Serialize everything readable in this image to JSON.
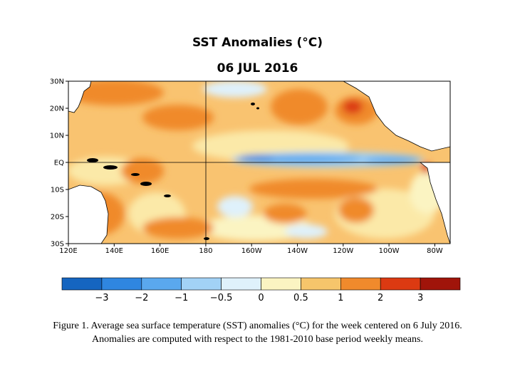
{
  "title": "SST Anomalies (°C)",
  "subtitle": "06 JUL 2016",
  "map": {
    "lat_labels": [
      "30N",
      "20N",
      "10N",
      "EQ",
      "10S",
      "20S",
      "30S"
    ],
    "lon_labels": [
      "120E",
      "140E",
      "160E",
      "180",
      "160W",
      "140W",
      "120W",
      "100W",
      "80W"
    ],
    "ocean_base_color": "#f9c370"
  },
  "colorbar": {
    "colors": [
      "#1565c0",
      "#2f86e0",
      "#5aa8ee",
      "#a2d2f6",
      "#dff1fb",
      "#fbf4c2",
      "#f6c56b",
      "#f08a2c",
      "#dc3a12",
      "#a0140a"
    ],
    "tick_labels": [
      "−3",
      "−2",
      "−1",
      "−0.5",
      "0",
      "0.5",
      "1",
      "2",
      "3"
    ]
  },
  "caption": {
    "line1": "Figure 1. Average sea surface temperature (SST) anomalies (°C) for the week centered on 6 July 2016.",
    "line2": "Anomalies  are computed with respect to the 1981-2010 base period weekly means."
  }
}
